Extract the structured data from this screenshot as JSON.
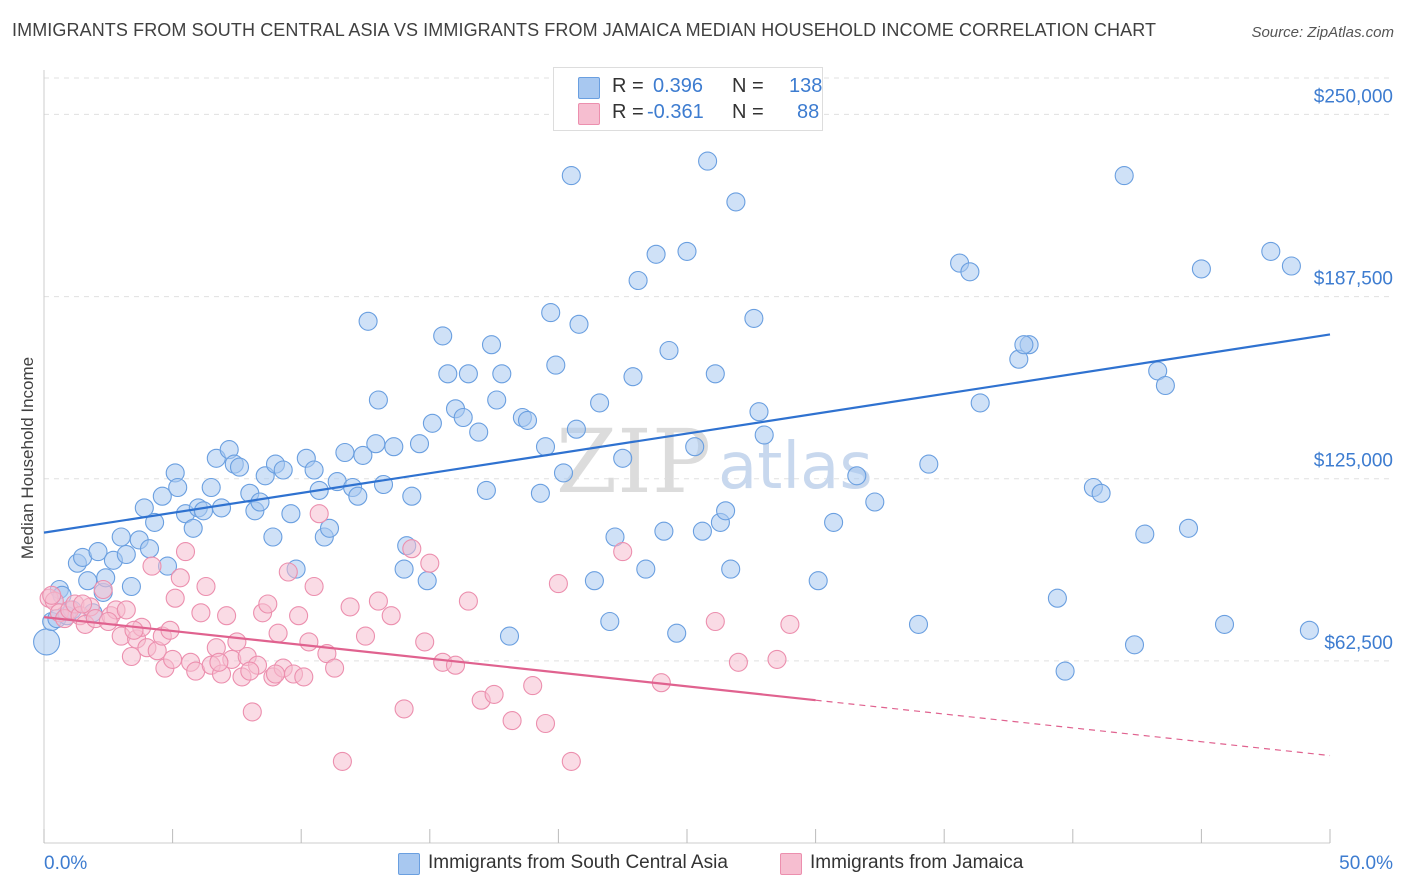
{
  "header": {
    "title": "IMMIGRANTS FROM SOUTH CENTRAL ASIA VS IMMIGRANTS FROM JAMAICA MEDIAN HOUSEHOLD INCOME CORRELATION CHART",
    "source": "Source: ZipAtlas.com"
  },
  "watermark": {
    "zip": "ZIP",
    "atlas": "atlas"
  },
  "legend": {
    "r_label": "R =",
    "n_label": "N =",
    "series1": {
      "r": "0.396",
      "n": "138"
    },
    "series2": {
      "r": "-0.361",
      "n": "88"
    }
  },
  "bottom_legend": {
    "series1": "Immigrants from South Central Asia",
    "series2": "Immigrants from Jamaica"
  },
  "colors": {
    "blue_fill": "#a8c8f0",
    "blue_stroke": "#6a9fe0",
    "blue_line": "#2f72d0",
    "pink_fill": "#f6bed0",
    "pink_stroke": "#ec8fae",
    "pink_line": "#e0628f",
    "tick_text": "#3d7cd0",
    "grid": "#e0e0e0"
  },
  "chart_data": {
    "type": "scatter",
    "title": "IMMIGRANTS FROM SOUTH CENTRAL ASIA VS IMMIGRANTS FROM JAMAICA MEDIAN HOUSEHOLD INCOME CORRELATION CHART",
    "xlabel": "",
    "ylabel": "Median Household Income",
    "xlim": [
      0,
      50
    ],
    "ylim": [
      0,
      262500
    ],
    "x_tick_labels": [
      "0.0%",
      "50.0%"
    ],
    "y_ticks": [
      62500,
      125000,
      187500,
      250000
    ],
    "y_tick_labels": [
      "$62,500",
      "$125,000",
      "$187,500",
      "$250,000"
    ],
    "series": [
      {
        "name": "Immigrants from South Central Asia",
        "r": 0.396,
        "n": 138,
        "trend": {
          "x": [
            0,
            50
          ],
          "y": [
            106500,
            174500
          ],
          "dashed_from": null
        },
        "points": [
          [
            0.1,
            69000
          ],
          [
            0.3,
            76000
          ],
          [
            0.5,
            77000
          ],
          [
            0.6,
            87000
          ],
          [
            0.7,
            85000
          ],
          [
            0.9,
            78000
          ],
          [
            1.1,
            80000
          ],
          [
            1.3,
            96000
          ],
          [
            1.5,
            98000
          ],
          [
            1.7,
            90000
          ],
          [
            1.9,
            79000
          ],
          [
            2.1,
            100000
          ],
          [
            2.3,
            86000
          ],
          [
            2.4,
            91000
          ],
          [
            2.7,
            97000
          ],
          [
            3.0,
            105000
          ],
          [
            3.2,
            99000
          ],
          [
            3.4,
            88000
          ],
          [
            3.7,
            104000
          ],
          [
            3.9,
            115000
          ],
          [
            4.1,
            101000
          ],
          [
            4.3,
            110000
          ],
          [
            4.6,
            119000
          ],
          [
            4.8,
            95000
          ],
          [
            5.1,
            127000
          ],
          [
            5.2,
            122000
          ],
          [
            5.5,
            113000
          ],
          [
            5.8,
            108000
          ],
          [
            6.0,
            115000
          ],
          [
            6.2,
            114000
          ],
          [
            6.5,
            122000
          ],
          [
            6.7,
            132000
          ],
          [
            6.9,
            115000
          ],
          [
            7.2,
            135000
          ],
          [
            7.4,
            130000
          ],
          [
            7.6,
            129000
          ],
          [
            8.0,
            120000
          ],
          [
            8.2,
            114000
          ],
          [
            8.4,
            117000
          ],
          [
            8.6,
            126000
          ],
          [
            8.9,
            105000
          ],
          [
            9.0,
            130000
          ],
          [
            9.3,
            128000
          ],
          [
            9.6,
            113000
          ],
          [
            9.8,
            94000
          ],
          [
            10.2,
            132000
          ],
          [
            10.5,
            128000
          ],
          [
            10.7,
            121000
          ],
          [
            10.9,
            105000
          ],
          [
            11.1,
            108000
          ],
          [
            11.4,
            124000
          ],
          [
            11.7,
            134000
          ],
          [
            12.0,
            122000
          ],
          [
            12.2,
            119000
          ],
          [
            12.4,
            133000
          ],
          [
            12.6,
            179000
          ],
          [
            12.9,
            137000
          ],
          [
            13.0,
            152000
          ],
          [
            13.2,
            123000
          ],
          [
            13.6,
            136000
          ],
          [
            14.0,
            94000
          ],
          [
            14.1,
            102000
          ],
          [
            14.3,
            119000
          ],
          [
            14.6,
            137000
          ],
          [
            14.9,
            90000
          ],
          [
            15.1,
            144000
          ],
          [
            15.5,
            174000
          ],
          [
            15.7,
            161000
          ],
          [
            16.0,
            149000
          ],
          [
            16.3,
            146000
          ],
          [
            16.5,
            161000
          ],
          [
            16.9,
            141000
          ],
          [
            17.2,
            121000
          ],
          [
            17.4,
            171000
          ],
          [
            17.6,
            152000
          ],
          [
            17.8,
            161000
          ],
          [
            18.1,
            71000
          ],
          [
            18.6,
            146000
          ],
          [
            18.8,
            145000
          ],
          [
            19.3,
            120000
          ],
          [
            19.5,
            136000
          ],
          [
            19.7,
            182000
          ],
          [
            19.9,
            164000
          ],
          [
            20.2,
            127000
          ],
          [
            20.5,
            229000
          ],
          [
            20.7,
            142000
          ],
          [
            20.8,
            178000
          ],
          [
            21.4,
            90000
          ],
          [
            21.6,
            151000
          ],
          [
            22.0,
            76000
          ],
          [
            22.2,
            105000
          ],
          [
            22.5,
            132000
          ],
          [
            22.9,
            160000
          ],
          [
            23.1,
            193000
          ],
          [
            23.4,
            94000
          ],
          [
            23.8,
            202000
          ],
          [
            24.1,
            107000
          ],
          [
            24.3,
            169000
          ],
          [
            24.6,
            72000
          ],
          [
            25.0,
            203000
          ],
          [
            25.3,
            136000
          ],
          [
            25.6,
            107000
          ],
          [
            25.8,
            234000
          ],
          [
            26.1,
            161000
          ],
          [
            26.3,
            110000
          ],
          [
            26.5,
            114000
          ],
          [
            26.7,
            94000
          ],
          [
            26.9,
            220000
          ],
          [
            27.6,
            180000
          ],
          [
            27.8,
            148000
          ],
          [
            28.0,
            140000
          ],
          [
            30.1,
            90000
          ],
          [
            31.6,
            126000
          ],
          [
            32.3,
            117000
          ],
          [
            30.7,
            110000
          ],
          [
            34.4,
            130000
          ],
          [
            35.6,
            199000
          ],
          [
            36.0,
            196000
          ],
          [
            36.4,
            151000
          ],
          [
            37.9,
            166000
          ],
          [
            38.3,
            171000
          ],
          [
            38.1,
            171000
          ],
          [
            39.4,
            84000
          ],
          [
            39.7,
            59000
          ],
          [
            40.8,
            122000
          ],
          [
            41.1,
            120000
          ],
          [
            42.0,
            229000
          ],
          [
            42.4,
            68000
          ],
          [
            42.8,
            106000
          ],
          [
            43.3,
            162000
          ],
          [
            43.6,
            157000
          ],
          [
            44.5,
            108000
          ],
          [
            45.0,
            197000
          ],
          [
            45.9,
            75000
          ],
          [
            47.7,
            203000
          ],
          [
            48.5,
            198000
          ],
          [
            49.2,
            73000
          ],
          [
            34.0,
            75000
          ]
        ]
      },
      {
        "name": "Immigrants from Jamaica",
        "r": -0.361,
        "n": 88,
        "trend": {
          "x": [
            0,
            50
          ],
          "y": [
            77500,
            30000
          ],
          "dashed_from": 30
        },
        "points": [
          [
            0.2,
            84000
          ],
          [
            0.4,
            83000
          ],
          [
            0.6,
            79000
          ],
          [
            0.8,
            77000
          ],
          [
            1.0,
            80000
          ],
          [
            1.2,
            82000
          ],
          [
            1.4,
            78000
          ],
          [
            1.6,
            75000
          ],
          [
            1.8,
            81000
          ],
          [
            2.0,
            77000
          ],
          [
            2.3,
            87000
          ],
          [
            2.6,
            78000
          ],
          [
            2.8,
            80000
          ],
          [
            3.0,
            71000
          ],
          [
            3.2,
            80000
          ],
          [
            3.4,
            64000
          ],
          [
            3.6,
            70000
          ],
          [
            3.8,
            74000
          ],
          [
            4.0,
            67000
          ],
          [
            4.2,
            95000
          ],
          [
            4.4,
            66000
          ],
          [
            4.6,
            71000
          ],
          [
            4.7,
            60000
          ],
          [
            4.9,
            73000
          ],
          [
            5.1,
            84000
          ],
          [
            5.3,
            91000
          ],
          [
            5.5,
            100000
          ],
          [
            5.7,
            62000
          ],
          [
            5.9,
            59000
          ],
          [
            6.1,
            79000
          ],
          [
            6.3,
            88000
          ],
          [
            6.5,
            61000
          ],
          [
            6.7,
            67000
          ],
          [
            6.9,
            58000
          ],
          [
            7.1,
            78000
          ],
          [
            7.3,
            63000
          ],
          [
            7.5,
            69000
          ],
          [
            7.7,
            57000
          ],
          [
            7.9,
            64000
          ],
          [
            8.1,
            45000
          ],
          [
            8.3,
            61000
          ],
          [
            8.5,
            79000
          ],
          [
            8.7,
            82000
          ],
          [
            8.9,
            57000
          ],
          [
            9.1,
            72000
          ],
          [
            9.3,
            60000
          ],
          [
            9.5,
            93000
          ],
          [
            9.7,
            58000
          ],
          [
            9.9,
            78000
          ],
          [
            10.1,
            57000
          ],
          [
            10.3,
            69000
          ],
          [
            10.5,
            88000
          ],
          [
            10.7,
            113000
          ],
          [
            11.0,
            65000
          ],
          [
            11.3,
            60000
          ],
          [
            11.6,
            28000
          ],
          [
            11.9,
            81000
          ],
          [
            12.5,
            71000
          ],
          [
            13.0,
            83000
          ],
          [
            13.5,
            78000
          ],
          [
            14.0,
            46000
          ],
          [
            14.3,
            101000
          ],
          [
            14.8,
            69000
          ],
          [
            15.0,
            96000
          ],
          [
            15.5,
            62000
          ],
          [
            16.0,
            61000
          ],
          [
            16.5,
            83000
          ],
          [
            17.0,
            49000
          ],
          [
            17.5,
            51000
          ],
          [
            18.2,
            42000
          ],
          [
            19.0,
            54000
          ],
          [
            19.5,
            41000
          ],
          [
            20.0,
            89000
          ],
          [
            20.5,
            28000
          ],
          [
            22.5,
            100000
          ],
          [
            24.0,
            55000
          ],
          [
            26.1,
            76000
          ],
          [
            27.0,
            62000
          ],
          [
            28.5,
            63000
          ],
          [
            29.0,
            75000
          ],
          [
            0.3,
            85000
          ],
          [
            1.5,
            82000
          ],
          [
            2.5,
            76000
          ],
          [
            3.5,
            73000
          ],
          [
            5.0,
            63000
          ],
          [
            6.8,
            62000
          ],
          [
            8.0,
            59000
          ],
          [
            9.0,
            58000
          ]
        ]
      }
    ]
  }
}
